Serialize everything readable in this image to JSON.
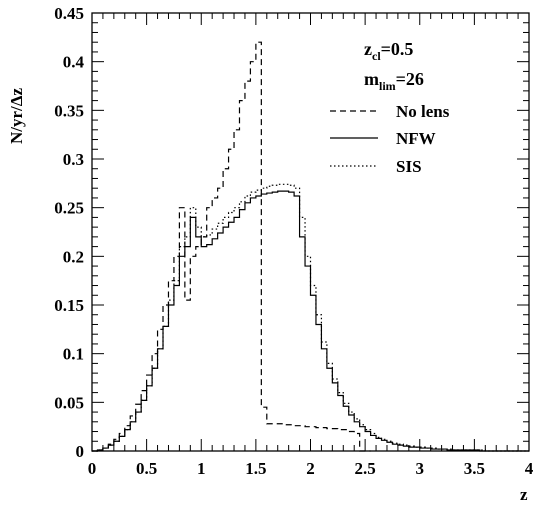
{
  "chart_data": {
    "type": "line",
    "xlabel": "z",
    "ylabel": "N/yr/Δz",
    "xlim": [
      0,
      4
    ],
    "ylim": [
      0,
      0.45
    ],
    "x_ticks": [
      "0",
      "0.5",
      "1",
      "1.5",
      "2",
      "2.5",
      "3",
      "3.5",
      "4"
    ],
    "y_ticks": [
      "0",
      "0.05",
      "0.1",
      "0.15",
      "0.2",
      "0.25",
      "0.3",
      "0.35",
      "0.4",
      "0.45"
    ],
    "annotations": [
      {
        "base": "z",
        "sub": "cl",
        "value": "=0.5"
      },
      {
        "base": "m",
        "sub": "lim",
        "value": "=26"
      }
    ],
    "legend_position": "top-right",
    "series": [
      {
        "name": "No lens",
        "style": "dashed",
        "x": [
          0,
          0.05,
          0.1,
          0.15,
          0.2,
          0.25,
          0.3,
          0.35,
          0.4,
          0.45,
          0.5,
          0.55,
          0.6,
          0.65,
          0.7,
          0.75,
          0.8,
          0.85,
          0.9,
          0.95,
          1.0,
          1.05,
          1.1,
          1.15,
          1.2,
          1.25,
          1.3,
          1.35,
          1.4,
          1.45,
          1.5,
          1.55,
          1.6,
          1.65,
          1.7,
          1.75,
          1.8,
          1.85,
          1.9,
          1.95,
          2.0,
          2.05,
          2.1,
          2.15,
          2.2,
          2.25,
          2.3,
          2.35,
          2.4,
          2.45,
          2.5
        ],
        "y": [
          0.0,
          0.001,
          0.003,
          0.007,
          0.012,
          0.018,
          0.026,
          0.036,
          0.048,
          0.062,
          0.078,
          0.1,
          0.125,
          0.15,
          0.175,
          0.2,
          0.25,
          0.155,
          0.2,
          0.21,
          0.22,
          0.25,
          0.26,
          0.27,
          0.29,
          0.31,
          0.33,
          0.36,
          0.38,
          0.4,
          0.42,
          0.045,
          0.028,
          0.028,
          0.028,
          0.027,
          0.027,
          0.026,
          0.026,
          0.025,
          0.025,
          0.024,
          0.024,
          0.023,
          0.023,
          0.022,
          0.022,
          0.02,
          0.018,
          0.0,
          0.0
        ]
      },
      {
        "name": "NFW",
        "style": "solid",
        "x": [
          0,
          0.05,
          0.1,
          0.15,
          0.2,
          0.25,
          0.3,
          0.35,
          0.4,
          0.45,
          0.5,
          0.55,
          0.6,
          0.65,
          0.7,
          0.75,
          0.8,
          0.85,
          0.9,
          0.95,
          1.0,
          1.05,
          1.1,
          1.15,
          1.2,
          1.25,
          1.3,
          1.35,
          1.4,
          1.45,
          1.5,
          1.55,
          1.6,
          1.65,
          1.7,
          1.75,
          1.8,
          1.85,
          1.9,
          1.95,
          2.0,
          2.05,
          2.1,
          2.15,
          2.2,
          2.25,
          2.3,
          2.35,
          2.4,
          2.45,
          2.5,
          2.55,
          2.6,
          2.65,
          2.7,
          2.75,
          2.8,
          2.85,
          2.9,
          2.95,
          3.0,
          3.05,
          3.1,
          3.15,
          3.2,
          3.25,
          3.3,
          3.35,
          3.4,
          3.45,
          3.5,
          3.55,
          3.6,
          3.65,
          3.7,
          3.75,
          3.8,
          3.85,
          3.9,
          3.95
        ],
        "y": [
          0.0,
          0.001,
          0.003,
          0.006,
          0.01,
          0.015,
          0.022,
          0.03,
          0.04,
          0.052,
          0.067,
          0.085,
          0.105,
          0.128,
          0.15,
          0.17,
          0.2,
          0.21,
          0.24,
          0.22,
          0.21,
          0.212,
          0.218,
          0.224,
          0.23,
          0.235,
          0.24,
          0.248,
          0.255,
          0.26,
          0.262,
          0.264,
          0.265,
          0.266,
          0.267,
          0.267,
          0.266,
          0.262,
          0.22,
          0.19,
          0.16,
          0.13,
          0.105,
          0.085,
          0.07,
          0.057,
          0.046,
          0.037,
          0.03,
          0.025,
          0.02,
          0.016,
          0.013,
          0.011,
          0.009,
          0.007,
          0.006,
          0.005,
          0.004,
          0.004,
          0.003,
          0.003,
          0.002,
          0.002,
          0.002,
          0.001,
          0.001,
          0.001,
          0.001,
          0.001,
          0.001,
          0.0,
          0.0,
          0.0,
          0.0,
          0.0,
          0.0,
          0.0,
          0.0,
          0.0
        ]
      },
      {
        "name": "SIS",
        "style": "dotted",
        "x": [
          0,
          0.05,
          0.1,
          0.15,
          0.2,
          0.25,
          0.3,
          0.35,
          0.4,
          0.45,
          0.5,
          0.55,
          0.6,
          0.65,
          0.7,
          0.75,
          0.8,
          0.85,
          0.9,
          0.95,
          1.0,
          1.05,
          1.1,
          1.15,
          1.2,
          1.25,
          1.3,
          1.35,
          1.4,
          1.45,
          1.5,
          1.55,
          1.6,
          1.65,
          1.7,
          1.75,
          1.8,
          1.85,
          1.9,
          1.95,
          2.0,
          2.05,
          2.1,
          2.15,
          2.2,
          2.25,
          2.3,
          2.35,
          2.4,
          2.45,
          2.5,
          2.55,
          2.6,
          2.65,
          2.7,
          2.75,
          2.8,
          2.85,
          2.9,
          2.95,
          3.0,
          3.05,
          3.1,
          3.15,
          3.2,
          3.25,
          3.3,
          3.35,
          3.4,
          3.45,
          3.5,
          3.55,
          3.6,
          3.65,
          3.7,
          3.75,
          3.8,
          3.85,
          3.9,
          3.95
        ],
        "y": [
          0.0,
          0.001,
          0.003,
          0.006,
          0.01,
          0.015,
          0.022,
          0.03,
          0.04,
          0.052,
          0.067,
          0.085,
          0.105,
          0.128,
          0.155,
          0.175,
          0.21,
          0.22,
          0.25,
          0.23,
          0.22,
          0.222,
          0.228,
          0.234,
          0.24,
          0.245,
          0.25,
          0.256,
          0.262,
          0.266,
          0.268,
          0.27,
          0.272,
          0.273,
          0.274,
          0.274,
          0.273,
          0.27,
          0.24,
          0.2,
          0.17,
          0.14,
          0.112,
          0.09,
          0.074,
          0.06,
          0.049,
          0.04,
          0.033,
          0.027,
          0.022,
          0.018,
          0.014,
          0.012,
          0.01,
          0.008,
          0.007,
          0.006,
          0.005,
          0.004,
          0.004,
          0.003,
          0.003,
          0.002,
          0.002,
          0.002,
          0.001,
          0.001,
          0.001,
          0.001,
          0.001,
          0.001,
          0.0,
          0.0,
          0.0,
          0.0,
          0.0,
          0.0,
          0.0,
          0.0
        ]
      }
    ]
  }
}
